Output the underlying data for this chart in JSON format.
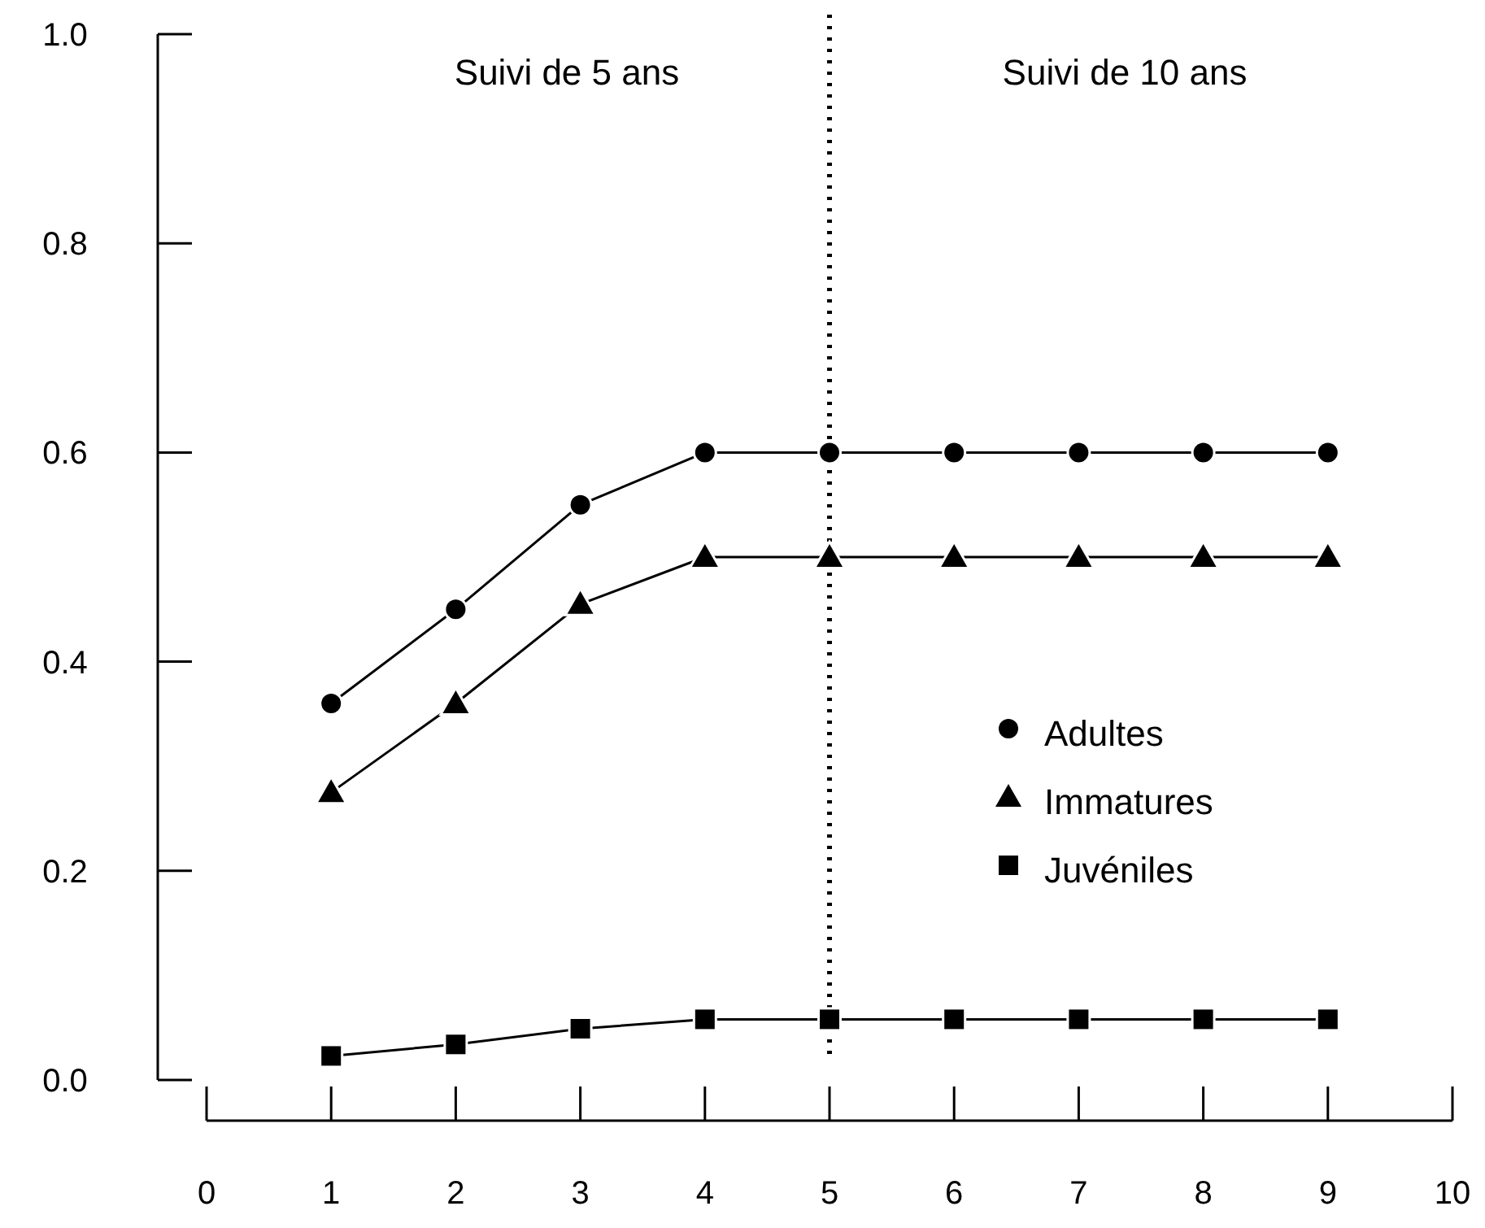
{
  "chart_data": {
    "type": "line",
    "x": [
      1,
      2,
      3,
      4,
      5,
      6,
      7,
      8,
      9
    ],
    "series": [
      {
        "name": "Adultes",
        "color": "#000000",
        "marker": "circle",
        "values": [
          0.36,
          0.45,
          0.55,
          0.6,
          0.6,
          0.6,
          0.6,
          0.6,
          0.6
        ]
      },
      {
        "name": "Immatures",
        "color": "#000000",
        "marker": "triangle",
        "values": [
          0.275,
          0.36,
          0.455,
          0.5,
          0.5,
          0.5,
          0.5,
          0.5,
          0.5
        ]
      },
      {
        "name": "Juvéniles",
        "color": "#000000",
        "marker": "square",
        "values": [
          0.023,
          0.034,
          0.049,
          0.058,
          0.058,
          0.058,
          0.058,
          0.058,
          0.058
        ]
      }
    ],
    "xlim": [
      0,
      10
    ],
    "xticks": [
      0,
      1,
      2,
      3,
      4,
      5,
      6,
      7,
      8,
      9,
      10
    ],
    "ylim": [
      0,
      1
    ],
    "yticks": [
      {
        "value": 0,
        "label": "0.0"
      },
      {
        "value": 0.2,
        "label": "0.2"
      },
      {
        "value": 0.4,
        "label": "0.4"
      },
      {
        "value": 0.6,
        "label": "0.6"
      },
      {
        "value": 0.8,
        "label": "0.8"
      },
      {
        "value": 1,
        "label": "1.0"
      }
    ],
    "ref_lines": [
      {
        "axis": "x",
        "value": 5,
        "color": "#000000",
        "line_style": "dotted"
      }
    ],
    "annotations": [
      "Suivi de 5 ans",
      "Suivi de 10 ans"
    ],
    "line_style": "solid",
    "legend": "right",
    "grid": false
  }
}
